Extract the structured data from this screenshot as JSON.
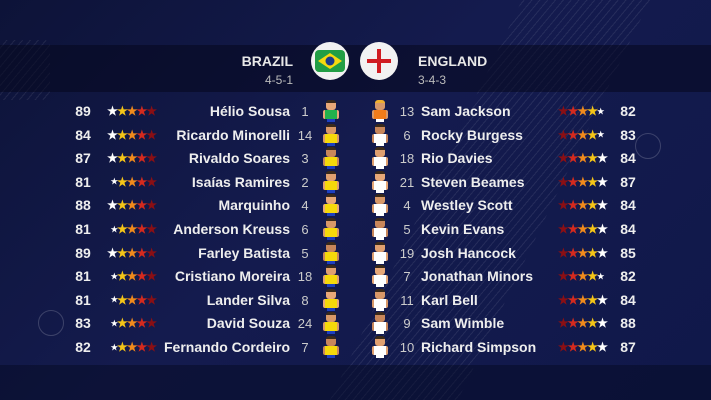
{
  "colors": {
    "star_left_to_right_brazil": [
      "#ffffff",
      "#f5c518",
      "#f08a1c",
      "#d42a1e",
      "#8a0f14"
    ],
    "brazil_shirt": "#f5d90a",
    "brazil_gk_shirt": "#22b14c",
    "england_shirt": "#ffffff",
    "england_gk_shirt": "#f07c1a"
  },
  "home": {
    "team": "BRAZIL",
    "formation": "4-5-1",
    "flag_icon": "brazil-flag-icon",
    "players": [
      {
        "rating": "89",
        "stars": 5,
        "name": "Hélio Sousa",
        "number": "1",
        "gk": true
      },
      {
        "rating": "84",
        "stars": 5,
        "name": "Ricardo Minorelli",
        "number": "14"
      },
      {
        "rating": "87",
        "stars": 5,
        "name": "Rivaldo Soares",
        "number": "3"
      },
      {
        "rating": "81",
        "stars": 4.5,
        "name": "Isaías Ramires",
        "number": "2"
      },
      {
        "rating": "88",
        "stars": 5,
        "name": "Marquinho",
        "number": "4"
      },
      {
        "rating": "81",
        "stars": 4.5,
        "name": "Anderson Kreuss",
        "number": "6"
      },
      {
        "rating": "89",
        "stars": 5,
        "name": "Farley Batista",
        "number": "5"
      },
      {
        "rating": "81",
        "stars": 4.5,
        "name": "Cristiano Moreira",
        "number": "18"
      },
      {
        "rating": "81",
        "stars": 4.5,
        "name": "Lander Silva",
        "number": "8"
      },
      {
        "rating": "83",
        "stars": 4.5,
        "name": "David Souza",
        "number": "24"
      },
      {
        "rating": "82",
        "stars": 4.5,
        "name": "Fernando Cordeiro",
        "number": "7"
      }
    ]
  },
  "away": {
    "team": "ENGLAND",
    "formation": "3-4-3",
    "flag_icon": "england-flag-icon",
    "players": [
      {
        "rating": "82",
        "stars": 4.5,
        "name": "Sam Jackson",
        "number": "13",
        "gk": true
      },
      {
        "rating": "83",
        "stars": 4.5,
        "name": "Rocky Burgess",
        "number": "6"
      },
      {
        "rating": "84",
        "stars": 5,
        "name": "Rio Davies",
        "number": "18"
      },
      {
        "rating": "87",
        "stars": 5,
        "name": "Steven Beames",
        "number": "21"
      },
      {
        "rating": "84",
        "stars": 5,
        "name": "Westley Scott",
        "number": "4"
      },
      {
        "rating": "84",
        "stars": 5,
        "name": "Kevin Evans",
        "number": "5"
      },
      {
        "rating": "85",
        "stars": 5,
        "name": "Josh Hancock",
        "number": "19"
      },
      {
        "rating": "82",
        "stars": 4.5,
        "name": "Jonathan Minors",
        "number": "7"
      },
      {
        "rating": "84",
        "stars": 5,
        "name": "Karl Bell",
        "number": "11"
      },
      {
        "rating": "88",
        "stars": 5,
        "name": "Sam Wimble",
        "number": "9"
      },
      {
        "rating": "87",
        "stars": 5,
        "name": "Richard Simpson",
        "number": "10"
      }
    ]
  }
}
